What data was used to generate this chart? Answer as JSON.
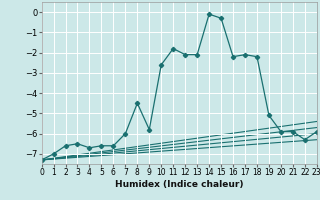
{
  "xlabel": "Humidex (Indice chaleur)",
  "background_color": "#cce8e8",
  "grid_color": "#b8d8d8",
  "line_color": "#1a7070",
  "xlim": [
    0,
    23
  ],
  "ylim": [
    -7.5,
    0.5
  ],
  "yticks": [
    0,
    -1,
    -2,
    -3,
    -4,
    -5,
    -6,
    -7
  ],
  "xticks": [
    0,
    1,
    2,
    3,
    4,
    5,
    6,
    7,
    8,
    9,
    10,
    11,
    12,
    13,
    14,
    15,
    16,
    17,
    18,
    19,
    20,
    21,
    22,
    23
  ],
  "main_series": [
    [
      0,
      -7.3
    ],
    [
      1,
      -7.0
    ],
    [
      2,
      -6.6
    ],
    [
      3,
      -6.5
    ],
    [
      4,
      -6.7
    ],
    [
      5,
      -6.6
    ],
    [
      6,
      -6.6
    ],
    [
      7,
      -6.0
    ],
    [
      8,
      -4.5
    ],
    [
      9,
      -5.8
    ],
    [
      10,
      -2.6
    ],
    [
      11,
      -1.8
    ],
    [
      12,
      -2.1
    ],
    [
      13,
      -2.1
    ],
    [
      14,
      -0.1
    ],
    [
      15,
      -0.3
    ],
    [
      16,
      -2.2
    ],
    [
      17,
      -2.1
    ],
    [
      18,
      -2.2
    ],
    [
      19,
      -5.1
    ],
    [
      20,
      -5.9
    ],
    [
      21,
      -5.9
    ],
    [
      22,
      -6.3
    ],
    [
      23,
      -5.9
    ]
  ],
  "trend_lines": [
    {
      "x": [
        0,
        23
      ],
      "y": [
        -7.3,
        -5.4
      ]
    },
    {
      "x": [
        0,
        23
      ],
      "y": [
        -7.3,
        -5.7
      ]
    },
    {
      "x": [
        0,
        23
      ],
      "y": [
        -7.3,
        -6.0
      ]
    },
    {
      "x": [
        0,
        23
      ],
      "y": [
        -7.3,
        -6.3
      ]
    }
  ]
}
